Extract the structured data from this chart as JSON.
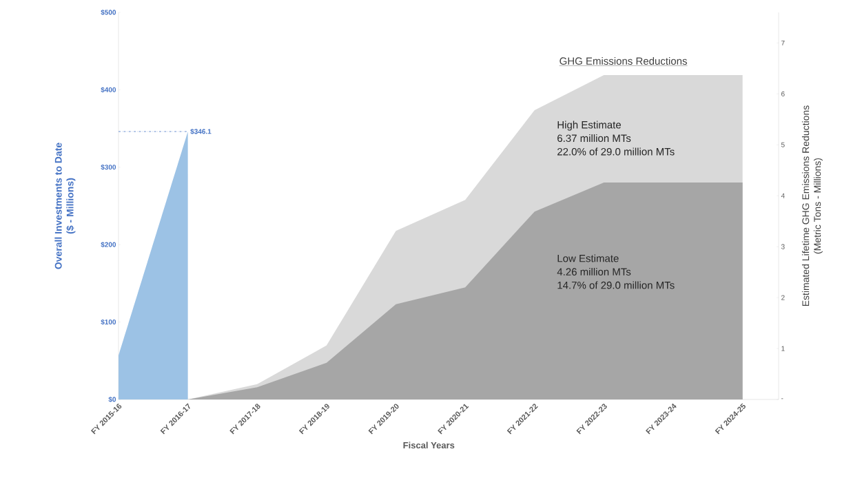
{
  "chart_data": {
    "type": "area",
    "xlabel": "Fiscal Years",
    "ylabel": "Overall Investments to Date\n($ - Millions)",
    "y2label": "Estimated Lifetime GHG Emissions Reductions\n(Metric Tons - Millions)",
    "categories": [
      "FY 2015-16",
      "FY 2016-17",
      "FY 2017-18",
      "FY 2018-19",
      "FY 2019-20",
      "FY 2020-21",
      "FY 2021-22",
      "FY 2022-23",
      "FY 2023-24",
      "FY 2024-25"
    ],
    "series": [
      {
        "color": "#9cc2e5",
        "values": [
          57,
          346.1,
          null,
          null,
          null,
          null,
          null,
          null,
          null,
          null
        ]
      },
      {
        "name": "High Estimate",
        "color": "#d9d9d9",
        "axis": "y2",
        "values": [
          null,
          0,
          0.3,
          1.06,
          3.31,
          3.92,
          5.68,
          6.37,
          6.37,
          6.37
        ]
      },
      {
        "name": "Low Estimate",
        "color": "#a6a6a6",
        "axis": "y2",
        "values": [
          null,
          0,
          0.24,
          0.72,
          1.87,
          2.2,
          3.69,
          4.26,
          4.26,
          4.26
        ]
      }
    ],
    "ylim": [
      0,
      500
    ],
    "yticks": [
      {
        "value": 0,
        "label": "$0"
      },
      {
        "value": 100,
        "label": "$100"
      },
      {
        "value": 200,
        "label": "$200"
      },
      {
        "value": 300,
        "label": "$300"
      },
      {
        "value": 400,
        "label": "$400"
      },
      {
        "value": 500,
        "label": "$500"
      }
    ],
    "y2lim": [
      0,
      7.6
    ],
    "y2ticks": [
      {
        "value": 0,
        "label": "-"
      },
      1,
      2,
      3,
      4,
      5,
      6,
      7
    ],
    "annotations": [
      "GHG Emissions Reductions",
      "6.37 million MTs",
      "22.0% of 29.0 million MTs",
      "4.26 million MTs",
      "14.7% of 29.0 million MTs",
      {
        "text": "$346.1",
        "x": "FY 2016-17",
        "y": 346.1
      }
    ],
    "grid": false
  }
}
